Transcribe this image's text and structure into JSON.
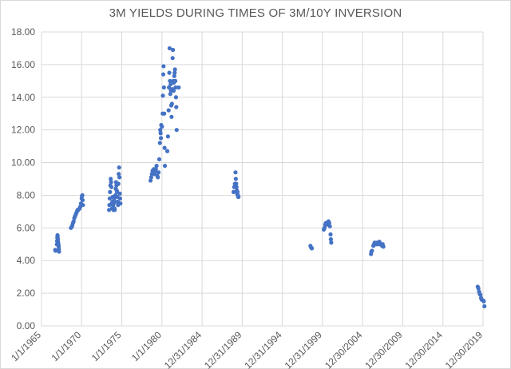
{
  "chart_data": {
    "type": "scatter",
    "title": "3M YIELDS DURING TIMES OF 3M/10Y INVERSION",
    "xlabel": "",
    "ylabel": "",
    "ylim": [
      0,
      18
    ],
    "xlim": [
      "1/1/1965",
      "12/30/2019"
    ],
    "grid": true,
    "legend": "none",
    "x_tick_labels": [
      "1/1/1965",
      "1/1/1970",
      "1/1/1975",
      "1/1/1980",
      "12/31/1984",
      "12/31/1989",
      "12/31/1994",
      "12/31/1999",
      "12/30/2004",
      "12/30/2009",
      "12/30/2014",
      "12/30/2019"
    ],
    "y_tick_labels": [
      "0.00",
      "2.00",
      "4.00",
      "6.00",
      "8.00",
      "10.00",
      "12.00",
      "14.00",
      "16.00",
      "18.00"
    ],
    "marker_color": "#4472c4",
    "series": [
      {
        "points": [
          [
            "1966-09-15",
            4.65
          ],
          [
            "1966-10-01",
            4.6
          ],
          [
            "1966-12-01",
            5.0
          ],
          [
            "1966-12-10",
            5.2
          ],
          [
            "1966-12-20",
            5.4
          ],
          [
            "1966-12-28",
            5.55
          ],
          [
            "1967-01-05",
            5.5
          ],
          [
            "1967-01-12",
            5.35
          ],
          [
            "1967-01-20",
            5.25
          ],
          [
            "1967-01-28",
            5.1
          ],
          [
            "1967-02-05",
            5.0
          ],
          [
            "1967-02-12",
            4.95
          ],
          [
            "1967-02-20",
            4.85
          ],
          [
            "1967-03-01",
            4.7
          ],
          [
            "1967-03-10",
            4.55
          ],
          [
            "1968-09-01",
            6.0
          ],
          [
            "1968-10-01",
            6.05
          ],
          [
            "1968-11-01",
            6.15
          ],
          [
            "1968-12-01",
            6.3
          ],
          [
            "1969-01-01",
            6.4
          ],
          [
            "1969-02-01",
            6.6
          ],
          [
            "1969-03-01",
            6.7
          ],
          [
            "1969-04-01",
            6.8
          ],
          [
            "1969-05-01",
            6.9
          ],
          [
            "1969-06-01",
            7.0
          ],
          [
            "1969-07-01",
            7.1
          ],
          [
            "1969-08-01",
            7.1
          ],
          [
            "1969-09-01",
            7.15
          ],
          [
            "1969-10-01",
            7.2
          ],
          [
            "1969-11-01",
            7.3
          ],
          [
            "1969-12-01",
            7.5
          ],
          [
            "1970-01-01",
            7.8
          ],
          [
            "1970-01-15",
            7.95
          ],
          [
            "1970-02-01",
            8.0
          ],
          [
            "1970-02-15",
            7.7
          ],
          [
            "1970-03-01",
            7.4
          ],
          [
            "1973-06-01",
            7.1
          ],
          [
            "1973-06-15",
            7.4
          ],
          [
            "1973-07-01",
            7.8
          ],
          [
            "1973-07-15",
            8.2
          ],
          [
            "1973-08-01",
            8.6
          ],
          [
            "1973-08-15",
            9.0
          ],
          [
            "1973-09-01",
            8.8
          ],
          [
            "1973-09-15",
            8.5
          ],
          [
            "1973-10-01",
            7.5
          ],
          [
            "1973-10-15",
            7.2
          ],
          [
            "1973-11-01",
            7.6
          ],
          [
            "1973-11-15",
            7.9
          ],
          [
            "1973-12-01",
            7.4
          ],
          [
            "1973-12-15",
            7.1
          ],
          [
            "1974-01-01",
            7.5
          ],
          [
            "1974-01-15",
            7.8
          ],
          [
            "1974-02-01",
            7.2
          ],
          [
            "1974-02-15",
            7.1
          ],
          [
            "1974-03-01",
            7.6
          ],
          [
            "1974-03-15",
            8.0
          ],
          [
            "1974-04-01",
            8.4
          ],
          [
            "1974-04-15",
            8.8
          ],
          [
            "1974-05-01",
            8.6
          ],
          [
            "1974-05-15",
            8.3
          ],
          [
            "1974-06-01",
            8.2
          ],
          [
            "1974-06-15",
            7.9
          ],
          [
            "1974-07-01",
            7.6
          ],
          [
            "1974-07-15",
            7.4
          ],
          [
            "1974-08-01",
            8.7
          ],
          [
            "1974-08-15",
            9.3
          ],
          [
            "1974-09-01",
            9.7
          ],
          [
            "1974-09-15",
            9.1
          ],
          [
            "1974-10-01",
            8.1
          ],
          [
            "1974-10-15",
            7.8
          ],
          [
            "1974-11-01",
            7.5
          ],
          [
            "1978-08-01",
            8.9
          ],
          [
            "1978-09-01",
            9.1
          ],
          [
            "1978-10-01",
            9.3
          ],
          [
            "1978-11-01",
            9.5
          ],
          [
            "1978-12-01",
            9.4
          ],
          [
            "1979-01-01",
            9.6
          ],
          [
            "1979-02-01",
            9.3
          ],
          [
            "1979-03-01",
            9.5
          ],
          [
            "1979-04-01",
            9.6
          ],
          [
            "1979-05-01",
            9.8
          ],
          [
            "1979-06-01",
            9.2
          ],
          [
            "1979-07-01",
            9.1
          ],
          [
            "1979-08-01",
            9.4
          ],
          [
            "1979-09-01",
            10.2
          ],
          [
            "1979-10-01",
            11.2
          ],
          [
            "1979-10-15",
            12.0
          ],
          [
            "1979-11-01",
            11.8
          ],
          [
            "1979-11-15",
            11.5
          ],
          [
            "1979-12-01",
            12.3
          ],
          [
            "1980-01-01",
            12.2
          ],
          [
            "1980-02-01",
            13.0
          ],
          [
            "1980-02-15",
            14.1
          ],
          [
            "1980-03-01",
            15.4
          ],
          [
            "1980-03-15",
            15.9
          ],
          [
            "1980-04-01",
            14.6
          ],
          [
            "1980-04-15",
            13.0
          ],
          [
            "1980-05-01",
            10.9
          ],
          [
            "1980-05-15",
            9.8
          ],
          [
            "1980-09-01",
            10.7
          ],
          [
            "1980-10-01",
            11.6
          ],
          [
            "1980-11-01",
            13.2
          ],
          [
            "1980-11-15",
            14.6
          ],
          [
            "1980-12-01",
            15.5
          ],
          [
            "1980-12-15",
            17.0
          ],
          [
            "1981-01-01",
            15.0
          ],
          [
            "1981-01-15",
            14.2
          ],
          [
            "1981-02-01",
            14.8
          ],
          [
            "1981-02-15",
            14.4
          ],
          [
            "1981-03-01",
            13.5
          ],
          [
            "1981-03-15",
            12.8
          ],
          [
            "1981-04-01",
            13.6
          ],
          [
            "1981-04-15",
            14.5
          ],
          [
            "1981-05-01",
            16.4
          ],
          [
            "1981-05-15",
            16.9
          ],
          [
            "1981-06-01",
            15.0
          ],
          [
            "1981-06-15",
            14.4
          ],
          [
            "1981-07-01",
            14.9
          ],
          [
            "1981-07-15",
            15.3
          ],
          [
            "1981-08-01",
            15.5
          ],
          [
            "1981-08-15",
            15.7
          ],
          [
            "1981-09-01",
            15.0
          ],
          [
            "1981-09-15",
            14.6
          ],
          [
            "1981-10-01",
            14.0
          ],
          [
            "1981-10-15",
            13.4
          ],
          [
            "1981-11-01",
            12.0
          ],
          [
            "1982-02-01",
            14.6
          ],
          [
            "1988-12-01",
            8.2
          ],
          [
            "1989-01-01",
            8.5
          ],
          [
            "1989-02-01",
            8.7
          ],
          [
            "1989-03-01",
            9.4
          ],
          [
            "1989-03-15",
            9.0
          ],
          [
            "1989-04-01",
            8.7
          ],
          [
            "1989-04-15",
            8.5
          ],
          [
            "1989-05-01",
            8.3
          ],
          [
            "1989-05-15",
            8.1
          ],
          [
            "1989-06-01",
            8.2
          ],
          [
            "1989-06-15",
            8.0
          ],
          [
            "1989-07-01",
            7.9
          ],
          [
            "1989-07-15",
            7.9
          ],
          [
            "1998-07-01",
            4.9
          ],
          [
            "1998-08-01",
            4.8
          ],
          [
            "1998-09-01",
            4.75
          ],
          [
            "2000-03-01",
            5.9
          ],
          [
            "2000-04-01",
            6.0
          ],
          [
            "2000-05-01",
            6.2
          ],
          [
            "2000-06-01",
            6.3
          ],
          [
            "2000-07-01",
            6.2
          ],
          [
            "2000-08-01",
            6.3
          ],
          [
            "2000-09-01",
            6.35
          ],
          [
            "2000-10-01",
            6.4
          ],
          [
            "2000-11-01",
            6.3
          ],
          [
            "2000-12-01",
            6.1
          ],
          [
            "2001-01-01",
            5.6
          ],
          [
            "2001-01-15",
            5.3
          ],
          [
            "2001-02-01",
            5.1
          ],
          [
            "2006-01-15",
            4.4
          ],
          [
            "2006-02-01",
            4.55
          ],
          [
            "2006-03-01",
            4.6
          ],
          [
            "2006-05-01",
            4.9
          ],
          [
            "2006-06-01",
            5.0
          ],
          [
            "2006-07-01",
            5.1
          ],
          [
            "2006-08-01",
            5.05
          ],
          [
            "2006-09-01",
            5.0
          ],
          [
            "2006-10-01",
            5.05
          ],
          [
            "2006-11-01",
            5.1
          ],
          [
            "2006-12-01",
            5.0
          ],
          [
            "2007-01-01",
            5.1
          ],
          [
            "2007-02-01",
            5.15
          ],
          [
            "2007-03-01",
            5.05
          ],
          [
            "2007-04-01",
            5.0
          ],
          [
            "2007-05-01",
            4.95
          ],
          [
            "2007-06-01",
            4.9
          ],
          [
            "2007-07-01",
            5.0
          ],
          [
            "2007-08-01",
            4.85
          ],
          [
            "2019-05-01",
            2.4
          ],
          [
            "2019-06-01",
            2.3
          ],
          [
            "2019-07-01",
            2.1
          ],
          [
            "2019-08-01",
            1.95
          ],
          [
            "2019-09-01",
            1.9
          ],
          [
            "2019-10-01",
            1.7
          ],
          [
            "2019-11-01",
            1.6
          ],
          [
            "2020-01-15",
            1.55
          ],
          [
            "2020-02-01",
            1.5
          ],
          [
            "2020-03-01",
            1.2
          ]
        ]
      }
    ]
  }
}
